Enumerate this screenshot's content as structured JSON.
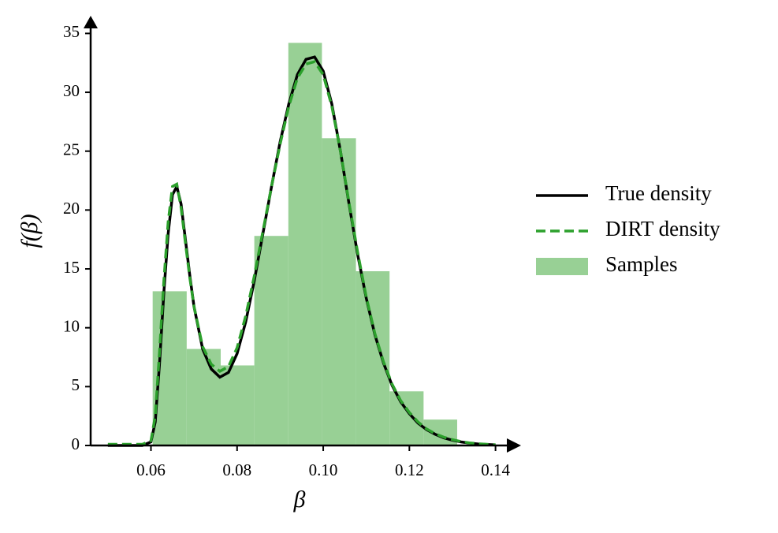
{
  "chart_data": {
    "type": "histogram",
    "xlabel": "β",
    "ylabel": "f(β)",
    "xlim": [
      0.046,
      0.143
    ],
    "ylim": [
      0,
      36.5
    ],
    "xticks": [
      0.06,
      0.08,
      {
        "value": 0.1,
        "label": "0.10"
      },
      0.12,
      0.14
    ],
    "yticks": [
      0,
      5,
      10,
      15,
      20,
      25,
      30,
      35
    ],
    "legend": "right",
    "series": [
      {
        "name": "True density",
        "type": "line",
        "color": "#000000",
        "style": "solid",
        "x": [
          0.05,
          0.058,
          0.06,
          0.061,
          0.062,
          0.063,
          0.064,
          0.065,
          0.066,
          0.067,
          0.068,
          0.069,
          0.07,
          0.072,
          0.074,
          0.076,
          0.078,
          0.08,
          0.082,
          0.084,
          0.086,
          0.088,
          0.09,
          0.092,
          0.094,
          0.096,
          0.098,
          0.1,
          0.102,
          0.104,
          0.106,
          0.108,
          0.11,
          0.112,
          0.114,
          0.116,
          0.118,
          0.12,
          0.122,
          0.124,
          0.126,
          0.128,
          0.13,
          0.132,
          0.134,
          0.136,
          0.138,
          0.14
        ],
        "values": [
          0,
          0,
          0.3,
          2,
          7,
          13,
          18,
          21.3,
          22,
          20.5,
          17.5,
          14.5,
          11.8,
          8.2,
          6.5,
          5.8,
          6.2,
          7.8,
          10.5,
          14,
          18,
          22,
          25.8,
          29,
          31.5,
          32.8,
          33,
          31.8,
          29,
          25,
          20.5,
          16.2,
          12.5,
          9.4,
          7,
          5.1,
          3.7,
          2.7,
          1.9,
          1.35,
          0.95,
          0.65,
          0.45,
          0.3,
          0.2,
          0.13,
          0.08,
          0.05
        ]
      },
      {
        "name": "DIRT density",
        "type": "line",
        "color": "#2ca02c",
        "style": "dashed",
        "x": [
          0.05,
          0.058,
          0.06,
          0.061,
          0.062,
          0.063,
          0.064,
          0.065,
          0.066,
          0.067,
          0.068,
          0.069,
          0.07,
          0.072,
          0.074,
          0.076,
          0.078,
          0.08,
          0.082,
          0.084,
          0.086,
          0.088,
          0.09,
          0.092,
          0.094,
          0.096,
          0.098,
          0.1,
          0.102,
          0.104,
          0.106,
          0.108,
          0.11,
          0.112,
          0.114,
          0.116,
          0.118,
          0.12,
          0.122,
          0.124,
          0.126,
          0.128,
          0.13,
          0.132,
          0.134,
          0.136,
          0.138,
          0.14
        ],
        "values": [
          0.1,
          0.1,
          0.4,
          2.5,
          8,
          14,
          19,
          22,
          22.2,
          20.2,
          17.2,
          14.3,
          11.8,
          8.4,
          6.9,
          6.3,
          6.7,
          8.3,
          11,
          14.4,
          18.2,
          22,
          25.6,
          28.8,
          31.2,
          32.4,
          32.6,
          31.5,
          28.8,
          25,
          20.6,
          16.4,
          12.6,
          9.5,
          7.1,
          5.2,
          3.8,
          2.8,
          2,
          1.4,
          1,
          0.7,
          0.5,
          0.33,
          0.22,
          0.15,
          0.1,
          0.06
        ]
      },
      {
        "name": "Samples",
        "type": "histogram",
        "color": "#98d095",
        "bins": [
          0.0604,
          0.0683,
          0.0762,
          0.084,
          0.0919,
          0.0997,
          0.1076,
          0.1154,
          0.1233,
          0.1311
        ],
        "values": [
          13.1,
          8.2,
          6.8,
          17.8,
          34.2,
          26.1,
          14.8,
          4.6,
          2.2
        ]
      }
    ]
  }
}
